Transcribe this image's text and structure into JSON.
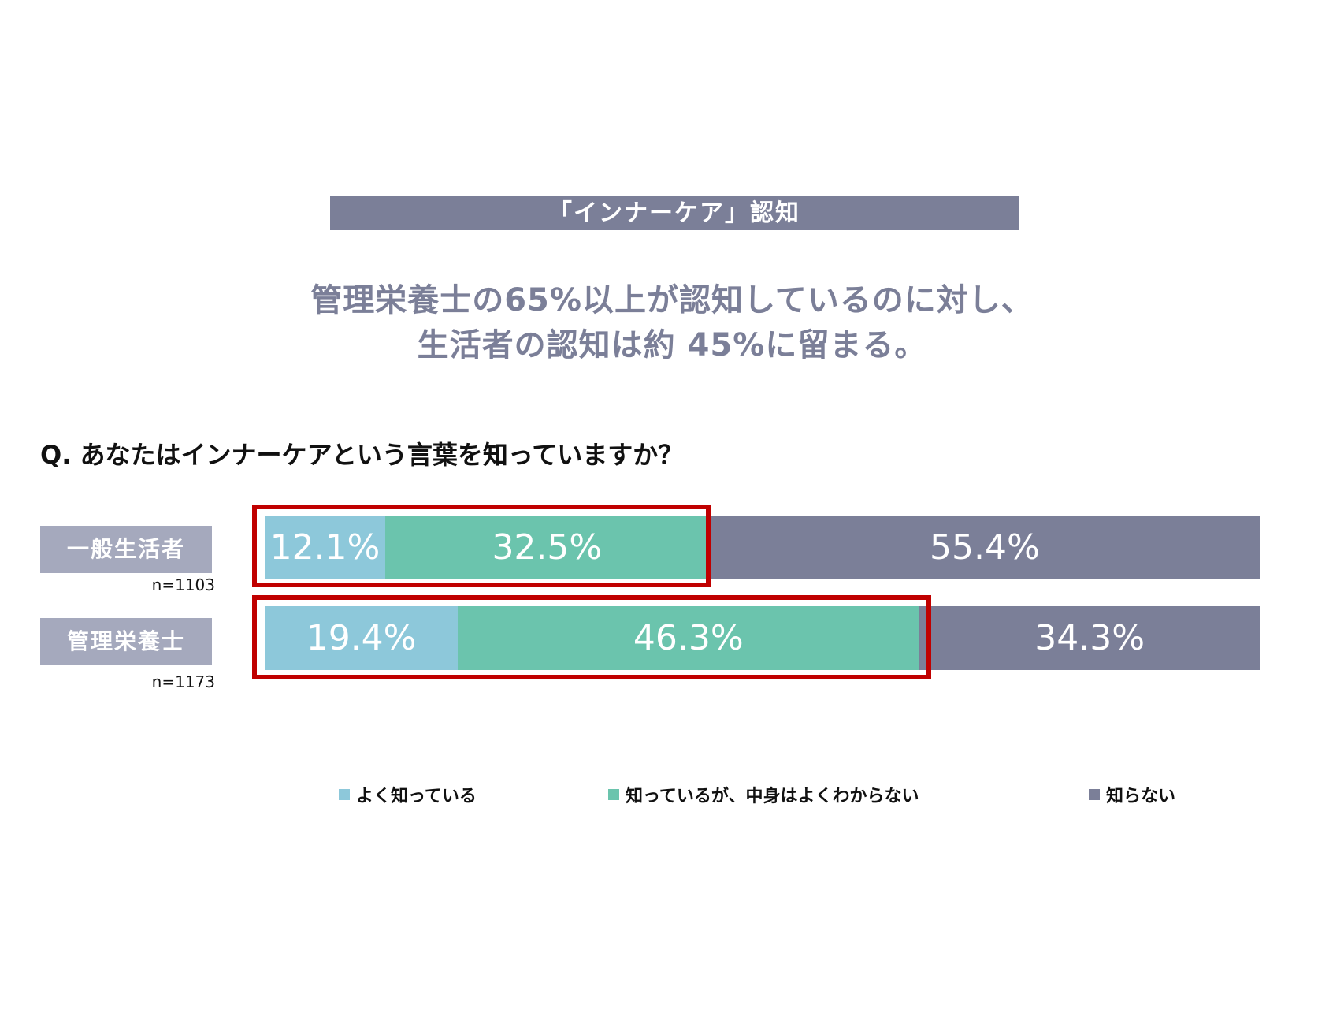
{
  "title": "「インナーケア」認知",
  "subtitle": [
    "管理栄養士の65%以上が認知しているのに対し、",
    "生活者の認知は約 45%に留まる。"
  ],
  "question": "Q. あなたはインナーケアという言葉を知っていますか？",
  "chart_data": {
    "type": "bar",
    "orientation": "horizontal",
    "stacked": true,
    "categories": [
      "一般生活者",
      "管理栄養士"
    ],
    "sample_sizes": [
      "n=1103",
      "n=1173"
    ],
    "series": [
      {
        "name": "よく知っている",
        "color": "#8dc8da",
        "values": [
          12.1,
          19.4
        ],
        "labels": [
          "12.1%",
          "19.4%"
        ]
      },
      {
        "name": "知っているが、中身はよくわからない",
        "color": "#6bc4ad",
        "values": [
          32.5,
          46.3
        ],
        "labels": [
          "32.5%",
          "46.3%"
        ]
      },
      {
        "name": "知らない",
        "color": "#7b7f98",
        "values": [
          55.4,
          34.3
        ],
        "labels": [
          "55.4%",
          "34.3%"
        ]
      }
    ],
    "xlim": [
      0,
      100
    ],
    "legend_position": "bottom",
    "highlight": {
      "description_color": "#c00000",
      "series_highlighted": [
        "よく知っている",
        "知っているが、中身はよくわからない"
      ]
    }
  }
}
